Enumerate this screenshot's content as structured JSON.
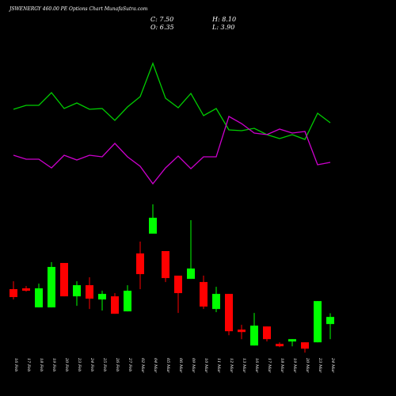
{
  "header": {
    "title": "JSWENERGY 460.00 PE Options Chart MunafaSutra.com",
    "stats": [
      "C: 7.50",
      "H: 8.10",
      "O: 6.35",
      "L: 3.90"
    ]
  },
  "chart_data": [
    {
      "type": "line",
      "ylim": [
        0,
        100
      ],
      "series": [
        {
          "color": "#00cc00",
          "values": [
            61,
            63.5,
            63.5,
            71.5,
            61.5,
            65,
            61,
            61.5,
            54,
            62.5,
            69,
            90,
            68,
            62,
            71,
            57,
            61.5,
            48,
            47.5,
            49,
            45,
            42.5,
            45,
            42,
            58.5,
            52.5
          ]
        },
        {
          "color": "#cc00cc",
          "values": [
            32,
            29.5,
            29.5,
            24,
            32,
            29,
            32,
            31,
            39.5,
            31,
            25,
            14,
            24,
            31.5,
            23.5,
            31,
            31,
            56.5,
            52,
            46,
            45,
            48.5,
            46,
            47,
            26,
            27.5
          ]
        }
      ]
    },
    {
      "type": "candlestick",
      "ylim": [
        -4,
        28
      ],
      "up_color": "#00ff00",
      "down_color": "#ff0000",
      "categories": [
        "16 Feb",
        "17 Feb",
        "18 Feb",
        "19 Feb",
        "20 Feb",
        "23 Feb",
        "24 Feb",
        "25 Feb",
        "26 Feb",
        "27 Feb",
        "02 Mar",
        "04 Mar",
        "05 Mar",
        "06 Mar",
        "09 Mar",
        "10 Mar",
        "11 Mar",
        "12 Mar",
        "13 Mar",
        "16 Mar",
        "17 Mar",
        "18 Mar",
        "19 Mar",
        "20 Mar",
        "23 Mar",
        "24 Mar"
      ],
      "open": [
        11.99,
        12.12,
        9.04,
        9.04,
        16.22,
        10.83,
        12.63,
        10.32,
        10.83,
        8.4,
        17.76,
        20.96,
        18.14,
        14.17,
        13.65,
        13.14,
        8.78,
        11.22,
        5.45,
        2.88,
        5.96,
        3.14,
        3.53,
        3.4,
        3.4,
        6.35
      ],
      "high": [
        13.27,
        12.5,
        12.88,
        16.35,
        16.22,
        13.27,
        13.91,
        11.73,
        11.35,
        12.63,
        19.68,
        25.7,
        18.14,
        14.17,
        23.14,
        14.17,
        12.37,
        11.22,
        6.22,
        8.14,
        5.96,
        3.4,
        3.91,
        3.4,
        10.06,
        8.1
      ],
      "low": [
        10.32,
        11.6,
        9.04,
        9.04,
        10.83,
        9.29,
        8.78,
        8.53,
        8.01,
        8.4,
        11.99,
        20.96,
        13.14,
        8.14,
        13.65,
        8.78,
        8.27,
        4.55,
        3.91,
        2.88,
        3.53,
        2.63,
        2.76,
        1.73,
        3.4,
        3.9
      ],
      "close": [
        10.71,
        11.73,
        12.12,
        15.58,
        10.83,
        12.63,
        10.45,
        11.22,
        8.01,
        11.73,
        14.42,
        23.53,
        13.78,
        11.35,
        15.32,
        9.17,
        11.22,
        5.19,
        5.06,
        6.09,
        3.91,
        2.76,
        3.91,
        2.37,
        10.06,
        7.5
      ]
    }
  ]
}
